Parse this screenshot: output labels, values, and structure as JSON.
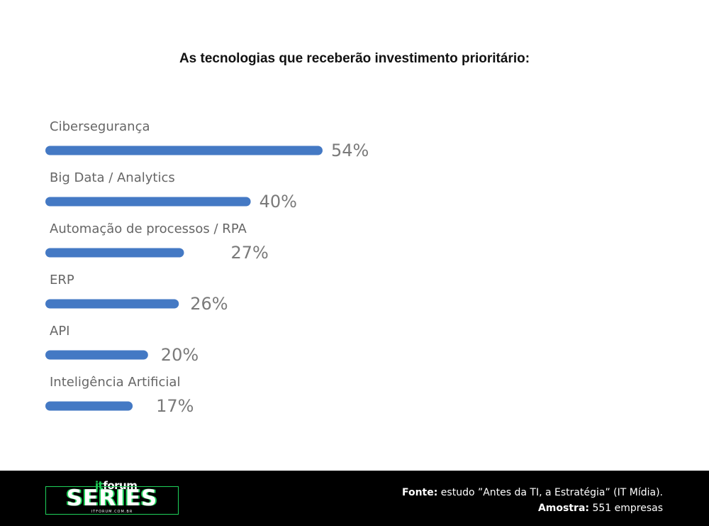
{
  "chart_data": {
    "type": "bar",
    "orientation": "horizontal",
    "title": "As tecnologias que receberão investimento prioritário:",
    "categories": [
      "Cibersegurança",
      "Big Data / Analytics",
      "Automação de processos / RPA",
      "ERP",
      "API",
      "Inteligência Artificial"
    ],
    "values": [
      54,
      40,
      27,
      26,
      20,
      17
    ],
    "value_labels": [
      "54%",
      "40%",
      "27%",
      "26%",
      "20%",
      "17%"
    ],
    "unit": "%",
    "bar_color": "#4479c4",
    "label_color": "#666666",
    "value_label_color": "#7a7a7a",
    "grid": false,
    "legend": "none"
  },
  "footer": {
    "logo": {
      "prefix": "it",
      "name": "forum",
      "word": "SERIES",
      "sub": "ITFORUM.COM.BR"
    },
    "source_label": "Fonte:",
    "source_text": " estudo ”Antes da TI, a Estratégia” (IT Mídia).",
    "sample_label": "Amostra:",
    "sample_text": " 551 empresas"
  },
  "colors": {
    "background": "#ffffff",
    "footer": "#000000",
    "accent": "#1fd15a"
  }
}
